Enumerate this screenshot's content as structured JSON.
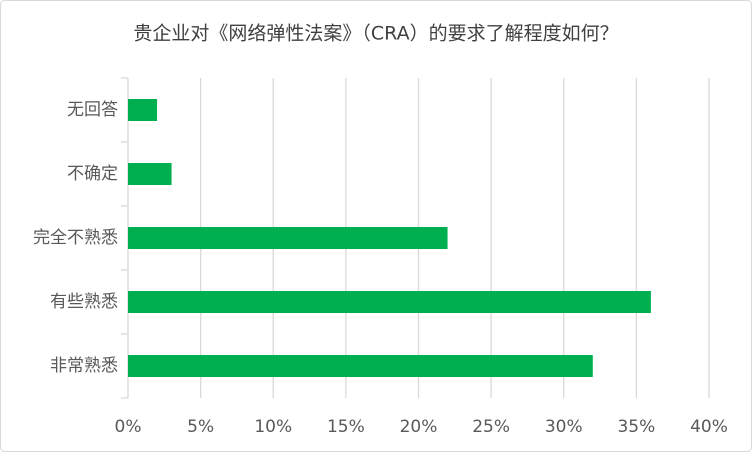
{
  "chart_data": {
    "type": "bar",
    "orientation": "horizontal",
    "title": "贵企业对《网络弹性法案》（CRA）的要求了解程度如何？",
    "categories": [
      "无回答",
      "不确定",
      "完全不熟悉",
      "有些熟悉",
      "非常熟悉"
    ],
    "values": [
      2,
      3,
      22,
      36,
      32
    ],
    "color": "#00b050",
    "xlim": [
      0,
      40
    ],
    "xticks": [
      {
        "value": 0,
        "label": "0%"
      },
      {
        "value": 5,
        "label": "5%"
      },
      {
        "value": 10,
        "label": "10%"
      },
      {
        "value": 15,
        "label": "15%"
      },
      {
        "value": 20,
        "label": "20%"
      },
      {
        "value": 25,
        "label": "25%"
      },
      {
        "value": 30,
        "label": "30%"
      },
      {
        "value": 35,
        "label": "35%"
      },
      {
        "value": 40,
        "label": "40%"
      }
    ],
    "grid": true
  }
}
